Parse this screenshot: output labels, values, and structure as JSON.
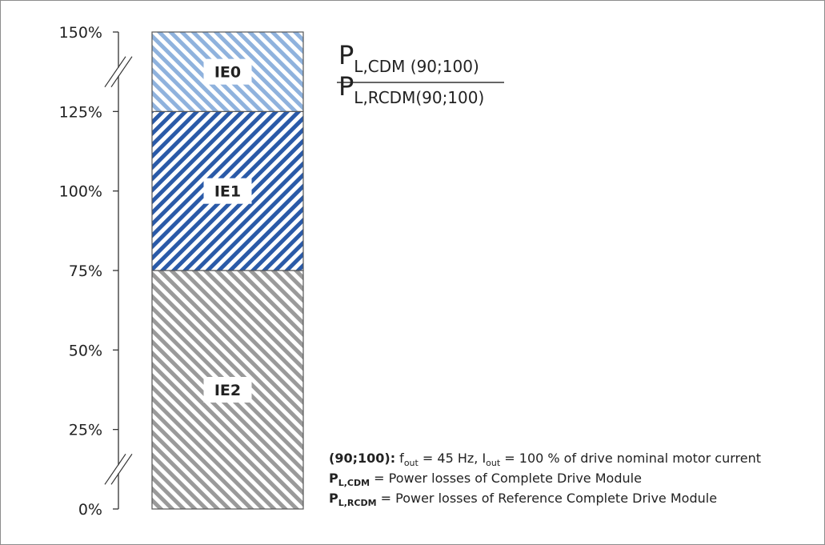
{
  "chart_data": {
    "type": "bar",
    "orientation": "vertical-stacked",
    "categories": [
      ""
    ],
    "segments": [
      {
        "name": "IE2",
        "from": 0,
        "to": 75,
        "color": "#9a9a9a",
        "pattern": "diagonal-hatch"
      },
      {
        "name": "IE1",
        "from": 75,
        "to": 125,
        "color": "#2a5aa8",
        "pattern": "diagonal-hatch"
      },
      {
        "name": "IE0",
        "from": 125,
        "to": 150,
        "color": "#8fb2dd",
        "pattern": "diagonal-hatch"
      }
    ],
    "y_ticks": [
      "0%",
      "25%",
      "50%",
      "75%",
      "100%",
      "125%",
      "150%"
    ],
    "y_tick_values": [
      0,
      25,
      50,
      75,
      100,
      125,
      150
    ],
    "ylim": [
      0,
      150
    ],
    "axis_breaks": "between 0%–25% and 125%–150%",
    "grid": false,
    "formula": {
      "numerator": {
        "main": "P",
        "sub": "L,CDM (90;100)"
      },
      "denominator": {
        "main": "P",
        "sub": "L,RCDM(90;100)"
      }
    },
    "notes": [
      {
        "bold": "(90;100):",
        "parts": [
          {
            "t": " f"
          },
          {
            "t": "out",
            "sub": true
          },
          {
            "t": " = 45 Hz, I"
          },
          {
            "t": "out",
            "sub": true
          },
          {
            "t": " = 100 % of drive nominal motor current"
          }
        ]
      },
      {
        "bold": "P",
        "bold_sub": "L,CDM",
        "parts": [
          {
            "t": " = Power losses of Complete Drive Module"
          }
        ]
      },
      {
        "bold": "P",
        "bold_sub": "L,RCDM",
        "parts": [
          {
            "t": " = Power losses of Reference Complete Drive Module"
          }
        ]
      }
    ]
  }
}
